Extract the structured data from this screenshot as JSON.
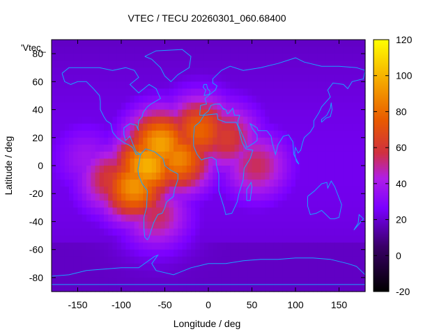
{
  "chart_data": {
    "type": "heatmap",
    "title": "VTEC / TECU 20260301_060.68400",
    "xlabel": "Longitude / deg",
    "ylabel": "Latitude / deg",
    "series_key": "'Vtec_",
    "xlim": [
      -180,
      180
    ],
    "ylim": [
      -90,
      90
    ],
    "x_ticks": [
      -150,
      -100,
      -50,
      0,
      50,
      100,
      150
    ],
    "x_tick_labels": [
      "-150",
      "-100",
      "-50",
      "0",
      "50",
      "100",
      "150"
    ],
    "y_ticks": [
      -80,
      -60,
      -40,
      -20,
      0,
      20,
      40,
      60,
      80
    ],
    "y_tick_labels": [
      "-80",
      "-60",
      "-40",
      "-20",
      "0",
      "20",
      "40",
      "60",
      "80"
    ],
    "colorbar": {
      "range": [
        -20,
        120
      ],
      "ticks": [
        -20,
        0,
        20,
        40,
        60,
        80,
        100,
        120
      ],
      "tick_labels": [
        "-20",
        "0",
        "20",
        "40",
        "60",
        "80",
        "100",
        "120"
      ]
    },
    "grid_step_deg": 5,
    "background_value": 18,
    "peaks": [
      {
        "lon": -70,
        "lat": 0,
        "value": 100
      },
      {
        "lon": -55,
        "lat": 15,
        "value": 96
      },
      {
        "lon": -85,
        "lat": -15,
        "value": 92
      },
      {
        "lon": -35,
        "lat": 5,
        "value": 88
      },
      {
        "lon": -10,
        "lat": 25,
        "value": 78
      },
      {
        "lon": 20,
        "lat": 20,
        "value": 62
      },
      {
        "lon": 55,
        "lat": 0,
        "value": 55
      },
      {
        "lon": -110,
        "lat": -10,
        "value": 62
      },
      {
        "lon": -60,
        "lat": -35,
        "value": 55
      },
      {
        "lon": -140,
        "lat": 5,
        "value": 38
      }
    ],
    "coastlines": [
      {
        "name": "north-america",
        "lonlat": [
          [
            -168,
            66
          ],
          [
            -160,
            70
          ],
          [
            -140,
            70
          ],
          [
            -125,
            70
          ],
          [
            -110,
            68
          ],
          [
            -95,
            70
          ],
          [
            -85,
            68
          ],
          [
            -80,
            63
          ],
          [
            -90,
            58
          ],
          [
            -80,
            52
          ],
          [
            -68,
            58
          ],
          [
            -60,
            55
          ],
          [
            -55,
            48
          ],
          [
            -66,
            44
          ],
          [
            -70,
            42
          ],
          [
            -75,
            38
          ],
          [
            -76,
            35
          ],
          [
            -80,
            32
          ],
          [
            -81,
            27
          ],
          [
            -80,
            25
          ],
          [
            -83,
            29
          ],
          [
            -90,
            30
          ],
          [
            -97,
            27
          ],
          [
            -97,
            22
          ],
          [
            -95,
            18
          ],
          [
            -90,
            21
          ],
          [
            -87,
            16
          ],
          [
            -83,
            10
          ],
          [
            -78,
            8
          ],
          [
            -83,
            8
          ],
          [
            -87,
            13
          ],
          [
            -92,
            15
          ],
          [
            -96,
            16
          ],
          [
            -105,
            20
          ],
          [
            -110,
            24
          ],
          [
            -112,
            30
          ],
          [
            -117,
            32
          ],
          [
            -120,
            35
          ],
          [
            -124,
            40
          ],
          [
            -124,
            46
          ],
          [
            -125,
            50
          ],
          [
            -132,
            55
          ],
          [
            -140,
            60
          ],
          [
            -150,
            60
          ],
          [
            -158,
            58
          ],
          [
            -165,
            60
          ],
          [
            -168,
            66
          ]
        ]
      },
      {
        "name": "south-america",
        "lonlat": [
          [
            -78,
            8
          ],
          [
            -72,
            12
          ],
          [
            -62,
            10
          ],
          [
            -52,
            5
          ],
          [
            -50,
            0
          ],
          [
            -44,
            -3
          ],
          [
            -35,
            -6
          ],
          [
            -35,
            -10
          ],
          [
            -39,
            -17
          ],
          [
            -40,
            -22
          ],
          [
            -48,
            -26
          ],
          [
            -50,
            -30
          ],
          [
            -53,
            -34
          ],
          [
            -58,
            -35
          ],
          [
            -63,
            -41
          ],
          [
            -66,
            -47
          ],
          [
            -68,
            -51
          ],
          [
            -70,
            -53
          ],
          [
            -73,
            -51
          ],
          [
            -74,
            -45
          ],
          [
            -74,
            -37
          ],
          [
            -71,
            -30
          ],
          [
            -70,
            -18
          ],
          [
            -76,
            -13
          ],
          [
            -80,
            -7
          ],
          [
            -81,
            -3
          ],
          [
            -80,
            0
          ],
          [
            -78,
            8
          ]
        ]
      },
      {
        "name": "greenland",
        "lonlat": [
          [
            -73,
            78
          ],
          [
            -60,
            82
          ],
          [
            -30,
            83
          ],
          [
            -20,
            78
          ],
          [
            -22,
            70
          ],
          [
            -35,
            65
          ],
          [
            -43,
            60
          ],
          [
            -50,
            64
          ],
          [
            -55,
            70
          ],
          [
            -65,
            76
          ],
          [
            -73,
            78
          ]
        ]
      },
      {
        "name": "africa",
        "lonlat": [
          [
            -17,
            21
          ],
          [
            -16,
            28
          ],
          [
            -10,
            31
          ],
          [
            -5,
            36
          ],
          [
            10,
            37
          ],
          [
            11,
            33
          ],
          [
            20,
            31
          ],
          [
            32,
            31
          ],
          [
            34,
            28
          ],
          [
            39,
            16
          ],
          [
            43,
            12
          ],
          [
            51,
            11
          ],
          [
            48,
            5
          ],
          [
            41,
            -2
          ],
          [
            40,
            -10
          ],
          [
            35,
            -20
          ],
          [
            33,
            -26
          ],
          [
            27,
            -34
          ],
          [
            20,
            -35
          ],
          [
            18,
            -30
          ],
          [
            12,
            -18
          ],
          [
            12,
            -6
          ],
          [
            9,
            1
          ],
          [
            9,
            4
          ],
          [
            4,
            6
          ],
          [
            -4,
            5
          ],
          [
            -8,
            4
          ],
          [
            -13,
            8
          ],
          [
            -17,
            14
          ],
          [
            -17,
            21
          ]
        ]
      },
      {
        "name": "eurasia",
        "lonlat": [
          [
            -10,
            36
          ],
          [
            -9,
            43
          ],
          [
            -2,
            44
          ],
          [
            -4,
            48
          ],
          [
            2,
            51
          ],
          [
            8,
            54
          ],
          [
            10,
            57
          ],
          [
            5,
            59
          ],
          [
            5,
            62
          ],
          [
            15,
            68
          ],
          [
            25,
            71
          ],
          [
            40,
            68
          ],
          [
            60,
            70
          ],
          [
            80,
            73
          ],
          [
            100,
            77
          ],
          [
            110,
            74
          ],
          [
            130,
            71
          ],
          [
            150,
            71
          ],
          [
            170,
            70
          ],
          [
            180,
            68
          ],
          [
            178,
            62
          ],
          [
            165,
            60
          ],
          [
            160,
            55
          ],
          [
            155,
            58
          ],
          [
            143,
            59
          ],
          [
            137,
            54
          ],
          [
            140,
            49
          ],
          [
            130,
            42
          ],
          [
            127,
            38
          ],
          [
            121,
            32
          ],
          [
            121,
            28
          ],
          [
            117,
            24
          ],
          [
            110,
            20
          ],
          [
            108,
            16
          ],
          [
            106,
            11
          ],
          [
            103,
            9
          ],
          [
            100,
            13
          ],
          [
            99,
            9
          ],
          [
            101,
            3
          ],
          [
            104,
            1
          ],
          [
            98,
            8
          ],
          [
            97,
            17
          ],
          [
            92,
            22
          ],
          [
            86,
            21
          ],
          [
            80,
            15
          ],
          [
            77,
            8
          ],
          [
            73,
            17
          ],
          [
            72,
            21
          ],
          [
            67,
            25
          ],
          [
            57,
            25
          ],
          [
            56,
            27
          ],
          [
            48,
            30
          ],
          [
            51,
            26
          ],
          [
            56,
            22
          ],
          [
            56,
            18
          ],
          [
            52,
            16
          ],
          [
            44,
            13
          ],
          [
            43,
            16
          ],
          [
            39,
            22
          ],
          [
            34,
            29
          ],
          [
            34,
            32
          ],
          [
            36,
            36
          ],
          [
            30,
            36
          ],
          [
            28,
            41
          ],
          [
            24,
            38
          ],
          [
            22,
            37
          ],
          [
            20,
            40
          ],
          [
            16,
            41
          ],
          [
            18,
            40
          ],
          [
            13,
            44
          ],
          [
            12,
            44
          ],
          [
            8,
            44
          ],
          [
            3,
            43
          ],
          [
            0,
            39
          ],
          [
            -6,
            36
          ],
          [
            -10,
            36
          ]
        ]
      },
      {
        "name": "australia",
        "lonlat": [
          [
            114,
            -22
          ],
          [
            122,
            -18
          ],
          [
            130,
            -13
          ],
          [
            136,
            -12
          ],
          [
            137,
            -16
          ],
          [
            141,
            -11
          ],
          [
            145,
            -15
          ],
          [
            150,
            -23
          ],
          [
            153,
            -28
          ],
          [
            150,
            -37
          ],
          [
            145,
            -38
          ],
          [
            140,
            -38
          ],
          [
            135,
            -35
          ],
          [
            130,
            -32
          ],
          [
            124,
            -34
          ],
          [
            117,
            -35
          ],
          [
            114,
            -29
          ],
          [
            114,
            -22
          ]
        ]
      },
      {
        "name": "uk",
        "lonlat": [
          [
            -5,
            50
          ],
          [
            1,
            51
          ],
          [
            2,
            53
          ],
          [
            -1,
            55
          ],
          [
            -2,
            58
          ],
          [
            -5,
            58
          ],
          [
            -6,
            56
          ],
          [
            -3,
            54
          ],
          [
            -5,
            50
          ]
        ]
      },
      {
        "name": "madagascar",
        "lonlat": [
          [
            44,
            -25
          ],
          [
            48,
            -25
          ],
          [
            50,
            -15
          ],
          [
            49,
            -12
          ],
          [
            44,
            -17
          ],
          [
            44,
            -25
          ]
        ]
      },
      {
        "name": "japan",
        "lonlat": [
          [
            130,
            31
          ],
          [
            135,
            34
          ],
          [
            140,
            35
          ],
          [
            142,
            40
          ],
          [
            141,
            45
          ],
          [
            140,
            41
          ],
          [
            136,
            36
          ],
          [
            130,
            33
          ],
          [
            130,
            31
          ]
        ]
      },
      {
        "name": "new-zealand",
        "lonlat": [
          [
            167,
            -46
          ],
          [
            174,
            -41
          ],
          [
            178,
            -38
          ],
          [
            173,
            -35
          ],
          [
            172,
            -41
          ],
          [
            167,
            -46
          ]
        ]
      },
      {
        "name": "antarctica",
        "lonlat": [
          [
            -180,
            -85
          ],
          [
            -180,
            -79
          ],
          [
            -160,
            -78
          ],
          [
            -140,
            -75
          ],
          [
            -120,
            -74
          ],
          [
            -100,
            -73
          ],
          [
            -80,
            -73
          ],
          [
            -62,
            -65
          ],
          [
            -58,
            -64
          ],
          [
            -65,
            -70
          ],
          [
            -60,
            -75
          ],
          [
            -40,
            -78
          ],
          [
            -20,
            -73
          ],
          [
            0,
            -70
          ],
          [
            20,
            -70
          ],
          [
            40,
            -68
          ],
          [
            60,
            -67
          ],
          [
            80,
            -67
          ],
          [
            100,
            -66
          ],
          [
            120,
            -66
          ],
          [
            140,
            -67
          ],
          [
            160,
            -70
          ],
          [
            170,
            -72
          ],
          [
            180,
            -78
          ],
          [
            180,
            -85
          ],
          [
            -180,
            -85
          ]
        ]
      }
    ]
  }
}
